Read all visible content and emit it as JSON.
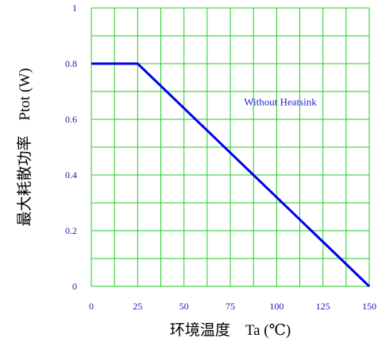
{
  "chart_data": {
    "type": "line",
    "title": "",
    "xlabel": "环境温度　Ta (℃)",
    "ylabel": "最大耗散功率　Ptot (W)",
    "xlim": [
      0,
      150
    ],
    "ylim": [
      0,
      1
    ],
    "x_ticks": [
      "0",
      "25",
      "50",
      "75",
      "100",
      "125",
      "150"
    ],
    "y_ticks": [
      "0",
      "0.2",
      "0.4",
      "0.6",
      "0.8",
      "1"
    ],
    "grid": true,
    "colors": {
      "grid": "#22cc22",
      "line": "#0000ee",
      "tick_text": "#1a1aa8"
    },
    "series": [
      {
        "x": [
          0,
          25,
          150
        ],
        "y": [
          0.8,
          0.8,
          0
        ]
      }
    ],
    "annotations": [
      {
        "text": "Without Heatsink",
        "x": 102,
        "y": 0.65
      }
    ]
  }
}
